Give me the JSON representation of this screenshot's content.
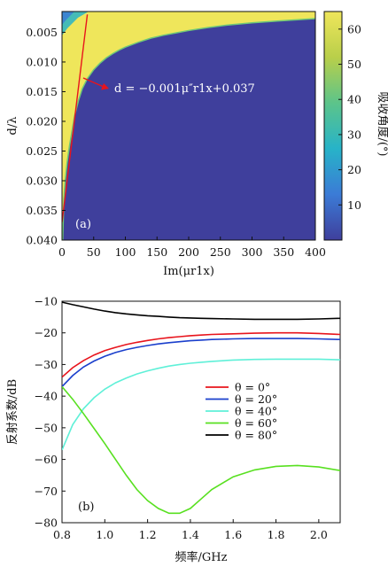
{
  "chart_data": [
    {
      "panel": "(a)",
      "type": "heatmap",
      "xlabel": "Im(μr1x)",
      "ylabel": "d/λ",
      "xlim": [
        0,
        400
      ],
      "ylim": [
        0.04,
        0.0015
      ],
      "xticks": [
        0,
        50,
        100,
        150,
        200,
        250,
        300,
        350,
        400
      ],
      "yticks": [
        0.005,
        0.01,
        0.015,
        0.02,
        0.025,
        0.03,
        0.035,
        0.04
      ],
      "yticklabels": [
        "0.005",
        "0.010",
        "0.015",
        "0.020",
        "0.025",
        "0.030",
        "0.035",
        "0.040"
      ],
      "colorbar": {
        "label": "吸收角度/(°)",
        "min": 0,
        "max": 65,
        "ticks": [
          10,
          20,
          30,
          40,
          50,
          60
        ],
        "colors": [
          "#3f3f9c",
          "#3b7bd6",
          "#27b3c8",
          "#5cc48a",
          "#b9cf4a",
          "#efe65b"
        ]
      },
      "annotation": {
        "text": "d = −0.001μ″r1x+0.037",
        "line_x": [
          0,
          40
        ],
        "line_y": [
          0.037,
          0.002
        ],
        "color": "#e8141c"
      },
      "boundary": {
        "x": [
          1,
          3,
          5,
          8,
          12,
          16,
          20,
          26,
          32,
          40,
          50,
          60,
          70,
          80,
          90,
          100,
          120,
          140,
          160,
          180,
          200,
          230,
          260,
          300,
          340,
          400
        ],
        "y": [
          0.04,
          0.033,
          0.03,
          0.027,
          0.024,
          0.0215,
          0.019,
          0.0165,
          0.0145,
          0.0128,
          0.0113,
          0.0102,
          0.0093,
          0.0086,
          0.008,
          0.0075,
          0.0067,
          0.006,
          0.0055,
          0.0051,
          0.0047,
          0.0042,
          0.0038,
          0.0034,
          0.0031,
          0.0027
        ]
      }
    },
    {
      "panel": "(b)",
      "type": "line",
      "xlabel": "频率/GHz",
      "ylabel": "反射系数/dB",
      "xlim": [
        0.8,
        2.1
      ],
      "ylim": [
        -80,
        -10
      ],
      "xticks": [
        0.8,
        1.0,
        1.2,
        1.4,
        1.6,
        1.8,
        2.0
      ],
      "xticklabels": [
        "0.8",
        "1.0",
        "1.2",
        "1.4",
        "1.6",
        "1.8",
        "2.0"
      ],
      "yticks": [
        -80,
        -70,
        -60,
        -50,
        -40,
        -30,
        -20,
        -10
      ],
      "yticklabels": [
        "−80",
        "−70",
        "−60",
        "−50",
        "−40",
        "−30",
        "−20",
        "−10"
      ],
      "legend_position": "center-right",
      "x": [
        0.8,
        0.85,
        0.9,
        0.95,
        1.0,
        1.05,
        1.1,
        1.15,
        1.2,
        1.25,
        1.3,
        1.35,
        1.4,
        1.45,
        1.5,
        1.6,
        1.7,
        1.8,
        1.9,
        2.0,
        2.1
      ],
      "series": [
        {
          "name": "θ = 0°",
          "color": "#e8141c",
          "values": [
            -34,
            -31,
            -28.8,
            -27,
            -25.6,
            -24.6,
            -23.7,
            -23,
            -22.4,
            -21.9,
            -21.5,
            -21.2,
            -20.9,
            -20.7,
            -20.5,
            -20.3,
            -20.1,
            -20.0,
            -20.0,
            -20.2,
            -20.5
          ]
        },
        {
          "name": "θ = 20°",
          "color": "#1a3fcc",
          "values": [
            -37,
            -33.5,
            -30.8,
            -28.9,
            -27.4,
            -26.2,
            -25.3,
            -24.6,
            -24,
            -23.5,
            -23.1,
            -22.8,
            -22.5,
            -22.3,
            -22.1,
            -21.9,
            -21.8,
            -21.8,
            -21.8,
            -21.9,
            -22.1
          ]
        },
        {
          "name": "θ = 40°",
          "color": "#5ff0d8",
          "values": [
            -57,
            -49,
            -44,
            -40.5,
            -37.8,
            -35.8,
            -34.3,
            -33,
            -32,
            -31.2,
            -30.5,
            -30,
            -29.6,
            -29.3,
            -29,
            -28.6,
            -28.4,
            -28.3,
            -28.3,
            -28.3,
            -28.5
          ]
        },
        {
          "name": "θ = 60°",
          "color": "#58e020",
          "values": [
            -37,
            -41,
            -45.5,
            -50.2,
            -55,
            -60,
            -65,
            -69.5,
            -73,
            -75.5,
            -77,
            -77,
            -75.5,
            -72.5,
            -69.5,
            -65.5,
            -63.3,
            -62.2,
            -61.9,
            -62.4,
            -63.5
          ]
        },
        {
          "name": "θ = 80°",
          "color": "#000000",
          "values": [
            -10.3,
            -11.1,
            -11.8,
            -12.5,
            -13.1,
            -13.6,
            -14,
            -14.3,
            -14.6,
            -14.8,
            -15,
            -15.2,
            -15.3,
            -15.4,
            -15.5,
            -15.6,
            -15.7,
            -15.7,
            -15.7,
            -15.6,
            -15.4
          ]
        }
      ]
    }
  ]
}
